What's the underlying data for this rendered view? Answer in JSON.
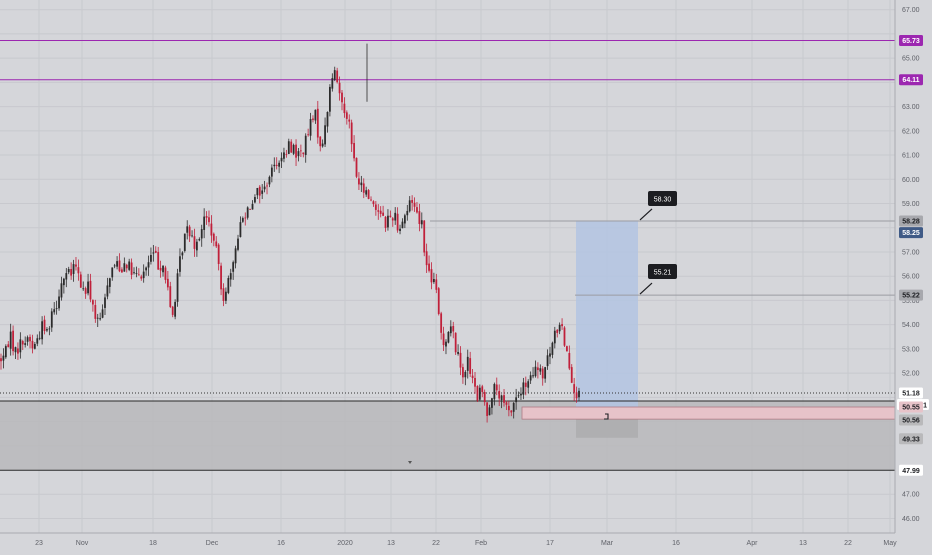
{
  "colors": {
    "background": "#d5d6da",
    "grid": "#c8c9ce",
    "axis_text": "#5f6168",
    "candle_up": "#2b2b2b",
    "candle_down": "#c0203a",
    "resistance_line": "#9c27b0",
    "stop_zone": "#b9b9bb",
    "target_zone": "#b3c4e2",
    "entry_zone": "#e7c3c9",
    "dark_label": "#1c1d21",
    "blue_label": "#3f5a86"
  },
  "chart_data": {
    "type": "candlestick",
    "ylim": [
      45.4,
      67.4
    ],
    "y_ticks": [
      "46.00",
      "47.00",
      "49.33",
      "50.56",
      "51.00",
      "52.00",
      "53.00",
      "54.00",
      "55.00",
      "55.22",
      "56.00",
      "57.00",
      "58.25",
      "58.28",
      "59.00",
      "60.00",
      "61.00",
      "62.00",
      "63.00",
      "64.00",
      "64.11",
      "65.00",
      "65.73",
      "67.00"
    ],
    "grid_levels": [
      46,
      47,
      48,
      49,
      50,
      51,
      52,
      53,
      54,
      55,
      56,
      57,
      58,
      59,
      60,
      61,
      62,
      63,
      64,
      65,
      66,
      67
    ],
    "x_ticks": [
      "23",
      "Nov",
      "18",
      "Dec",
      "16",
      "2020",
      "13",
      "22",
      "Feb",
      "17",
      "Mar",
      "16",
      "Apr",
      "13",
      "22",
      "May"
    ],
    "levels": {
      "resistance": [
        65.73,
        64.11
      ],
      "current_price": 51.18,
      "zone_top": 50.85,
      "zone_bottom": 47.99
    },
    "price_labels": {
      "r1": "65.73",
      "r2": "64.11",
      "target_line": "58.28",
      "target_blue": "58.25",
      "mid": "55.22",
      "current": "51.18",
      "timer": "02:55:01",
      "zone_mid": "50.55",
      "entry": "50.56",
      "stop": "49.33",
      "zone_bottom": "47.99"
    },
    "callouts": [
      "58.30",
      "55.21"
    ],
    "position": {
      "target": 58.3,
      "entry_top": 50.6,
      "entry": 50.1,
      "stop": 49.33
    },
    "price_path": [
      52.6,
      52.8,
      53.7,
      52.8,
      53.2,
      53.3,
      53.5,
      53.0,
      53.5,
      54.0,
      53.7,
      54.6,
      54.9,
      55.7,
      56.1,
      56.0,
      56.5,
      55.8,
      55.3,
      55.6,
      54.6,
      54.0,
      54.5,
      55.8,
      56.3,
      56.6,
      56.3,
      56.7,
      56.2,
      56.0,
      55.9,
      56.2,
      56.6,
      57.0,
      56.5,
      56.5,
      55.5,
      54.2,
      55.6,
      57.0,
      57.9,
      57.9,
      57.3,
      57.8,
      58.4,
      58.2,
      57.4,
      56.6,
      55.1,
      55.8,
      56.0,
      57.6,
      58.3,
      58.7,
      59.0,
      59.5,
      59.5,
      59.6,
      60.2,
      60.5,
      60.9,
      60.8,
      61.3,
      61.4,
      61.0,
      61.1,
      61.6,
      62.3,
      62.6,
      61.4,
      61.9,
      63.6,
      64.5,
      63.8,
      63.0,
      62.7,
      61.2,
      60.0,
      59.6,
      59.4,
      59.2,
      58.8,
      58.8,
      58.2,
      58.4,
      58.6,
      58.0,
      58.4,
      58.8,
      59.2,
      58.6,
      58.2,
      56.4,
      56.0,
      55.5,
      53.8,
      53.2,
      54.0,
      53.4,
      52.5,
      52.0,
      52.5,
      51.6,
      51.0,
      51.3,
      50.3,
      51.1,
      51.4,
      50.9,
      50.6,
      50.3,
      50.9,
      51.1,
      51.4,
      51.5,
      51.9,
      52.2,
      51.8,
      52.4,
      53.0,
      53.7,
      54.2,
      53.2,
      52.3,
      51.3,
      51.0
    ]
  }
}
